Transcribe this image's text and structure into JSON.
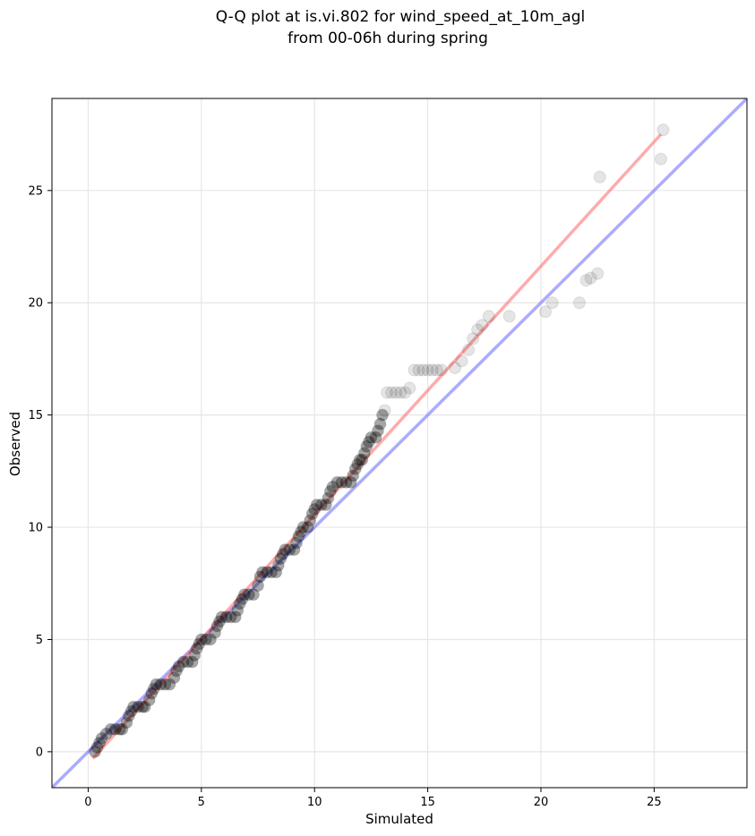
{
  "chart_data": {
    "type": "scatter",
    "title_lines": [
      "Q-Q plot at is.vi.802 for wind_speed_at_10m_agl",
      "from 00-06h during spring"
    ],
    "xlabel": "Simulated",
    "ylabel": "Observed",
    "xlim": [
      -1.6,
      29.1
    ],
    "ylim": [
      -1.6,
      29.1
    ],
    "xticks": [
      0,
      5,
      10,
      15,
      20,
      25
    ],
    "yticks": [
      0,
      5,
      10,
      15,
      20,
      25
    ],
    "grid": true,
    "colors": {
      "points": "#000000",
      "fit_line": "#ff6666",
      "identity_line": "#6666ff",
      "grid": "#e6e6e6"
    },
    "identity_line": {
      "x": [
        -1.6,
        29.1
      ],
      "y": [
        -1.6,
        29.1
      ]
    },
    "fit_line": {
      "x": [
        0.2,
        25.3
      ],
      "y": [
        -0.3,
        27.5
      ]
    },
    "points": [
      [
        0.3,
        0.0
      ],
      [
        0.4,
        0.2
      ],
      [
        0.5,
        0.4
      ],
      [
        0.6,
        0.6
      ],
      [
        0.8,
        0.8
      ],
      [
        1.0,
        1.0
      ],
      [
        1.2,
        1.0
      ],
      [
        1.4,
        1.0
      ],
      [
        1.5,
        1.0
      ],
      [
        1.7,
        1.3
      ],
      [
        1.8,
        1.6
      ],
      [
        1.9,
        1.8
      ],
      [
        2.0,
        2.0
      ],
      [
        2.2,
        2.0
      ],
      [
        2.4,
        2.0
      ],
      [
        2.5,
        2.0
      ],
      [
        2.7,
        2.3
      ],
      [
        2.8,
        2.6
      ],
      [
        2.9,
        2.8
      ],
      [
        3.0,
        3.0
      ],
      [
        3.2,
        3.0
      ],
      [
        3.4,
        3.0
      ],
      [
        3.6,
        3.0
      ],
      [
        3.8,
        3.3
      ],
      [
        3.9,
        3.6
      ],
      [
        4.0,
        3.8
      ],
      [
        4.2,
        4.0
      ],
      [
        4.4,
        4.0
      ],
      [
        4.6,
        4.0
      ],
      [
        4.7,
        4.3
      ],
      [
        4.8,
        4.6
      ],
      [
        4.9,
        4.8
      ],
      [
        5.0,
        5.0
      ],
      [
        5.2,
        5.0
      ],
      [
        5.4,
        5.0
      ],
      [
        5.6,
        5.3
      ],
      [
        5.7,
        5.6
      ],
      [
        5.8,
        5.8
      ],
      [
        5.9,
        6.0
      ],
      [
        6.1,
        6.0
      ],
      [
        6.3,
        6.0
      ],
      [
        6.5,
        6.0
      ],
      [
        6.6,
        6.3
      ],
      [
        6.7,
        6.6
      ],
      [
        6.8,
        6.8
      ],
      [
        6.9,
        7.0
      ],
      [
        7.1,
        7.0
      ],
      [
        7.3,
        7.0
      ],
      [
        7.5,
        7.4
      ],
      [
        7.6,
        7.8
      ],
      [
        7.7,
        8.0
      ],
      [
        7.9,
        8.0
      ],
      [
        8.1,
        8.0
      ],
      [
        8.3,
        8.0
      ],
      [
        8.4,
        8.3
      ],
      [
        8.5,
        8.6
      ],
      [
        8.6,
        8.8
      ],
      [
        8.7,
        9.0
      ],
      [
        8.9,
        9.0
      ],
      [
        9.1,
        9.0
      ],
      [
        9.2,
        9.3
      ],
      [
        9.3,
        9.6
      ],
      [
        9.4,
        9.8
      ],
      [
        9.5,
        10.0
      ],
      [
        9.7,
        10.0
      ],
      [
        9.8,
        10.3
      ],
      [
        9.9,
        10.6
      ],
      [
        10.0,
        10.8
      ],
      [
        10.1,
        11.0
      ],
      [
        10.3,
        11.0
      ],
      [
        10.5,
        11.0
      ],
      [
        10.6,
        11.3
      ],
      [
        10.7,
        11.6
      ],
      [
        10.8,
        11.8
      ],
      [
        11.0,
        12.0
      ],
      [
        11.2,
        12.0
      ],
      [
        11.4,
        12.0
      ],
      [
        11.6,
        12.0
      ],
      [
        11.7,
        12.3
      ],
      [
        11.8,
        12.6
      ],
      [
        11.9,
        12.8
      ],
      [
        12.0,
        13.0
      ],
      [
        12.1,
        13.0
      ],
      [
        12.2,
        13.3
      ],
      [
        12.3,
        13.6
      ],
      [
        12.4,
        13.8
      ],
      [
        12.5,
        14.0
      ],
      [
        12.7,
        14.0
      ],
      [
        12.8,
        14.3
      ],
      [
        12.9,
        14.6
      ],
      [
        13.0,
        15.0
      ],
      [
        13.1,
        15.2
      ],
      [
        13.2,
        16.0
      ],
      [
        13.4,
        16.0
      ],
      [
        13.6,
        16.0
      ],
      [
        13.8,
        16.0
      ],
      [
        14.0,
        16.0
      ],
      [
        14.2,
        16.2
      ],
      [
        14.4,
        17.0
      ],
      [
        14.6,
        17.0
      ],
      [
        14.8,
        17.0
      ],
      [
        15.0,
        17.0
      ],
      [
        15.2,
        17.0
      ],
      [
        15.4,
        17.0
      ],
      [
        15.6,
        17.0
      ],
      [
        16.2,
        17.1
      ],
      [
        16.5,
        17.4
      ],
      [
        16.8,
        17.9
      ],
      [
        17.0,
        18.4
      ],
      [
        17.2,
        18.8
      ],
      [
        17.4,
        19.0
      ],
      [
        17.7,
        19.4
      ],
      [
        18.6,
        19.4
      ],
      [
        20.2,
        19.6
      ],
      [
        20.5,
        20.0
      ],
      [
        21.7,
        20.0
      ],
      [
        22.0,
        21.0
      ],
      [
        22.2,
        21.1
      ],
      [
        22.5,
        21.3
      ],
      [
        22.6,
        25.6
      ],
      [
        25.3,
        26.4
      ],
      [
        25.4,
        27.7
      ]
    ]
  }
}
